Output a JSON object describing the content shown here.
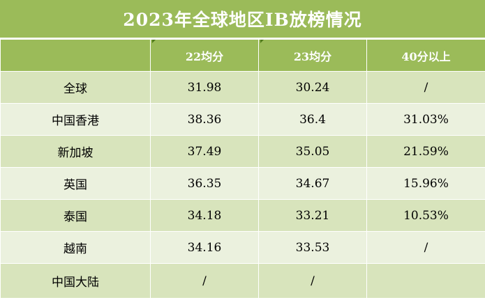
{
  "title": "2023年全球地区IB放榜情况",
  "header": {
    "col0": "",
    "col1": "22均分",
    "col2": "23均分",
    "col3": "40分以上"
  },
  "rows": [
    {
      "region": "全球",
      "avg22": "31.98",
      "avg23": "30.24",
      "above40": "/"
    },
    {
      "region": "中国香港",
      "avg22": "38.36",
      "avg23": "36.4",
      "above40": "31.03%"
    },
    {
      "region": "新加坡",
      "avg22": "37.49",
      "avg23": "35.05",
      "above40": "21.59%"
    },
    {
      "region": "英国",
      "avg22": "36.35",
      "avg23": "34.67",
      "above40": "15.96%"
    },
    {
      "region": "泰国",
      "avg22": "34.18",
      "avg23": "33.21",
      "above40": "10.53%"
    },
    {
      "region": "越南",
      "avg22": "34.16",
      "avg23": "33.53",
      "above40": "/"
    },
    {
      "region": "中国大陆",
      "avg22": "/",
      "avg23": "/",
      "above40": ""
    }
  ],
  "colors": {
    "header_bg": "#9bbb59",
    "row_odd_bg": "#d8e4bc",
    "row_even_bg": "#ebf1de",
    "header_text": "#ffffff"
  }
}
